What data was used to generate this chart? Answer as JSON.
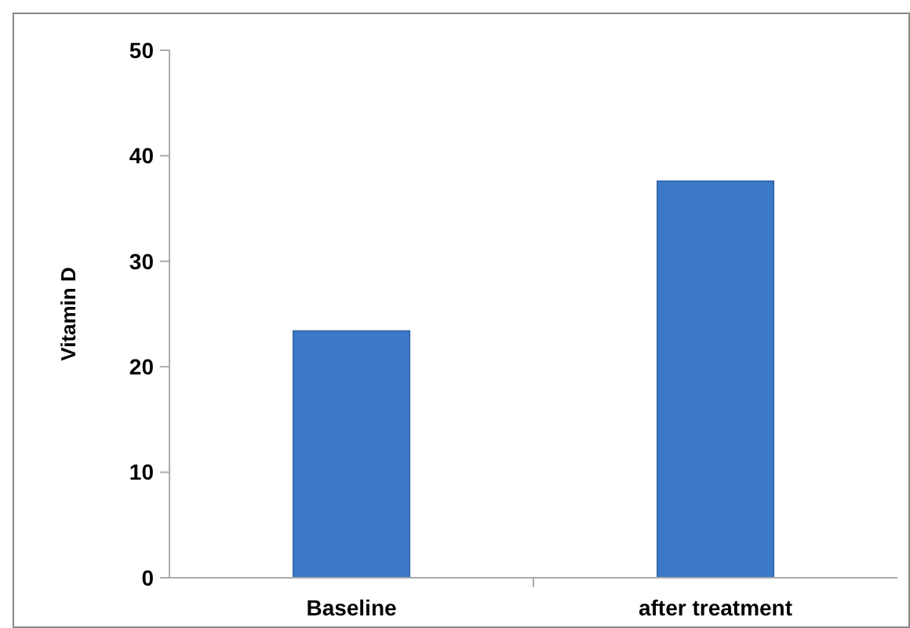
{
  "chart_data": {
    "type": "bar",
    "ylabel": "Vitamin D",
    "categories": [
      "Baseline",
      "after treatment"
    ],
    "values": [
      23.4,
      37.6
    ],
    "color": "#3c78c8",
    "ylim": [
      0,
      50
    ],
    "yticks": [
      0,
      10,
      20,
      30,
      40,
      50
    ],
    "grid": false
  }
}
